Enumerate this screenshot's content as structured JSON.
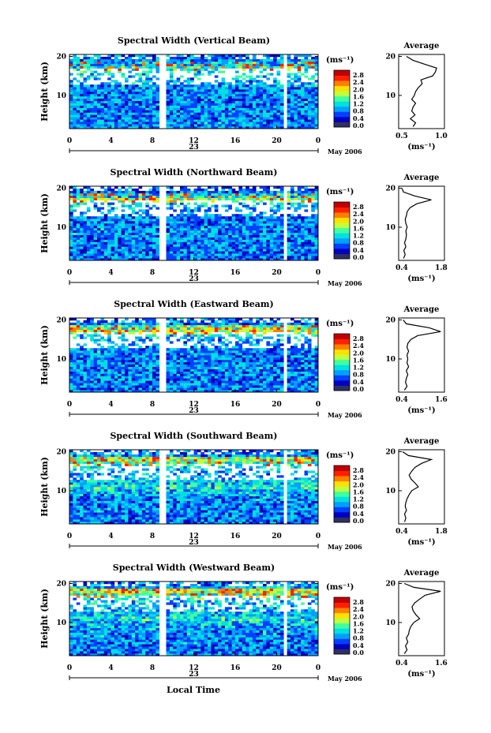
{
  "figure": {
    "month_label": "May 2006",
    "day_label": "23",
    "xlabel": "Local Time",
    "colorbar_unit": "(ms⁻¹)",
    "colorbar_ticks": [
      "2.8",
      "2.4",
      "2.0",
      "1.6",
      "1.2",
      "0.8",
      "0.4",
      "0.0"
    ],
    "colormap": [
      "#303060",
      "#0000c0",
      "#0040ff",
      "#00a0ff",
      "#00e0e0",
      "#40ffa0",
      "#c0ff40",
      "#ffe000",
      "#ff8000",
      "#ff2000",
      "#c00000"
    ]
  },
  "chart_data": [
    {
      "type": "heatmap",
      "title": "Spectral Width (Vertical Beam)",
      "ylabel": "Height (km)",
      "xticks": [
        "0",
        "4",
        "8",
        "12",
        "16",
        "20",
        "0"
      ],
      "xlim": [
        0,
        24
      ],
      "yticks": [
        "10",
        "20"
      ],
      "ylim": [
        1.5,
        20.5
      ],
      "data_gaps_hours": [
        [
          8.8,
          9.3
        ],
        [
          20.6,
          20.9
        ]
      ],
      "colorbar_range": [
        0.0,
        3.0
      ],
      "average_profile": {
        "title": "Average",
        "xlabel": "(ms⁻¹)",
        "xticks": [
          "0.5",
          "1.0"
        ],
        "xlim": [
          0.4,
          1.1
        ],
        "yticks": [
          "10",
          "20"
        ],
        "ylim": [
          1.5,
          20.5
        ],
        "height_km": [
          2,
          3,
          4,
          5,
          6,
          7,
          8,
          9,
          10,
          11,
          12,
          13,
          14,
          15,
          16,
          17,
          18,
          19,
          20
        ],
        "width_ms": [
          0.62,
          0.66,
          0.58,
          0.65,
          0.6,
          0.62,
          0.66,
          0.6,
          0.64,
          0.66,
          0.7,
          0.76,
          0.74,
          0.92,
          0.96,
          0.98,
          0.8,
          0.62,
          0.52
        ]
      }
    },
    {
      "type": "heatmap",
      "title": "Spectral Width (Northward Beam)",
      "ylabel": "Height (km)",
      "xticks": [
        "0",
        "4",
        "8",
        "12",
        "16",
        "20",
        "0"
      ],
      "xlim": [
        0,
        24
      ],
      "yticks": [
        "10",
        "20"
      ],
      "ylim": [
        1.5,
        20.5
      ],
      "data_gaps_hours": [
        [
          8.8,
          9.3
        ],
        [
          20.6,
          20.9
        ]
      ],
      "colorbar_range": [
        0.0,
        3.0
      ],
      "average_profile": {
        "title": "Average",
        "xlabel": "(ms⁻¹)",
        "xticks": [
          "0.4",
          "1.8"
        ],
        "xlim": [
          0.4,
          1.8
        ],
        "yticks": [
          "10",
          "20"
        ],
        "ylim": [
          1.5,
          20.5
        ],
        "height_km": [
          2,
          3,
          4,
          5,
          6,
          7,
          8,
          9,
          10,
          11,
          12,
          13,
          14,
          15,
          16,
          17,
          18,
          19,
          20
        ],
        "width_ms": [
          0.55,
          0.6,
          0.56,
          0.62,
          0.58,
          0.62,
          0.64,
          0.62,
          0.66,
          0.62,
          0.6,
          0.64,
          0.66,
          0.75,
          0.95,
          1.4,
          0.9,
          0.55,
          0.5
        ]
      }
    },
    {
      "type": "heatmap",
      "title": "Spectral Width (Eastward Beam)",
      "ylabel": "Height (km)",
      "xticks": [
        "0",
        "4",
        "8",
        "12",
        "16",
        "20",
        "0"
      ],
      "xlim": [
        0,
        24
      ],
      "yticks": [
        "10",
        "20"
      ],
      "ylim": [
        1.5,
        20.5
      ],
      "data_gaps_hours": [
        [
          8.8,
          9.3
        ],
        [
          20.6,
          20.9
        ]
      ],
      "colorbar_range": [
        0.0,
        3.0
      ],
      "average_profile": {
        "title": "Average",
        "xlabel": "(ms⁻¹)",
        "xticks": [
          "0.4",
          "1.6"
        ],
        "xlim": [
          0.4,
          1.6
        ],
        "yticks": [
          "10",
          "20"
        ],
        "ylim": [
          1.5,
          20.5
        ],
        "height_km": [
          2,
          3,
          4,
          5,
          6,
          7,
          8,
          9,
          10,
          11,
          12,
          13,
          14,
          15,
          16,
          17,
          18,
          19,
          20
        ],
        "width_ms": [
          0.55,
          0.62,
          0.58,
          0.6,
          0.64,
          0.6,
          0.66,
          0.62,
          0.64,
          0.62,
          0.66,
          0.62,
          0.64,
          0.72,
          0.9,
          1.5,
          1.2,
          0.6,
          0.52
        ]
      }
    },
    {
      "type": "heatmap",
      "title": "Spectral Width (Southward Beam)",
      "ylabel": "Height (km)",
      "xticks": [
        "0",
        "4",
        "8",
        "12",
        "16",
        "20",
        "0"
      ],
      "xlim": [
        0,
        24
      ],
      "yticks": [
        "10",
        "20"
      ],
      "ylim": [
        1.5,
        20.5
      ],
      "data_gaps_hours": [
        [
          8.8,
          9.3
        ],
        [
          20.6,
          20.9
        ]
      ],
      "colorbar_range": [
        0.0,
        3.0
      ],
      "average_profile": {
        "title": "Average",
        "xlabel": "(ms⁻¹)",
        "xticks": [
          "0.4",
          "1.8"
        ],
        "xlim": [
          0.4,
          1.8
        ],
        "yticks": [
          "10",
          "20"
        ],
        "ylim": [
          1.5,
          20.5
        ],
        "height_km": [
          2,
          3,
          4,
          5,
          6,
          7,
          8,
          9,
          10,
          11,
          12,
          13,
          14,
          15,
          16,
          17,
          18,
          19,
          20
        ],
        "width_ms": [
          0.58,
          0.62,
          0.58,
          0.64,
          0.6,
          0.62,
          0.66,
          0.72,
          0.8,
          1.0,
          0.9,
          0.78,
          0.72,
          0.8,
          0.9,
          1.1,
          1.4,
          0.7,
          0.52
        ]
      }
    },
    {
      "type": "heatmap",
      "title": "Spectral Width (Westward Beam)",
      "ylabel": "Height (km)",
      "xticks": [
        "0",
        "4",
        "8",
        "12",
        "16",
        "20",
        "0"
      ],
      "xlim": [
        0,
        24
      ],
      "yticks": [
        "10",
        "20"
      ],
      "ylim": [
        1.5,
        20.5
      ],
      "data_gaps_hours": [
        [
          8.8,
          9.3
        ],
        [
          20.6,
          20.9
        ]
      ],
      "colorbar_range": [
        0.0,
        3.0
      ],
      "average_profile": {
        "title": "Average",
        "xlabel": "(ms⁻¹)",
        "xticks": [
          "0.4",
          "1.6"
        ],
        "xlim": [
          0.4,
          1.6
        ],
        "yticks": [
          "10",
          "20"
        ],
        "ylim": [
          1.5,
          20.5
        ],
        "height_km": [
          2,
          3,
          4,
          5,
          6,
          7,
          8,
          9,
          10,
          11,
          12,
          13,
          14,
          15,
          16,
          17,
          18,
          19,
          20
        ],
        "width_ms": [
          0.55,
          0.62,
          0.58,
          0.64,
          0.6,
          0.66,
          0.68,
          0.72,
          0.8,
          0.95,
          0.85,
          0.78,
          0.75,
          0.82,
          0.95,
          1.1,
          1.5,
          0.8,
          0.55
        ]
      }
    }
  ]
}
